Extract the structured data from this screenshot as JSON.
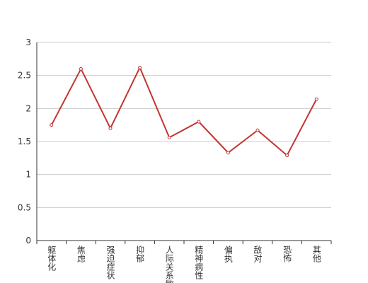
{
  "chart_data": {
    "type": "line",
    "categories": [
      "躯体化",
      "焦虑",
      "强迫症状",
      "抑郁",
      "人际关系敏感",
      "精神病性",
      "偏执",
      "敌对",
      "恐怖",
      "其他"
    ],
    "values": [
      1.75,
      2.6,
      1.7,
      2.62,
      1.56,
      1.8,
      1.33,
      1.67,
      1.29,
      2.14
    ],
    "color": "#c23531",
    "ylim": [
      0,
      3
    ],
    "yticks": [
      0,
      0.5,
      1,
      1.5,
      2,
      2.5,
      3
    ],
    "grid": true
  }
}
